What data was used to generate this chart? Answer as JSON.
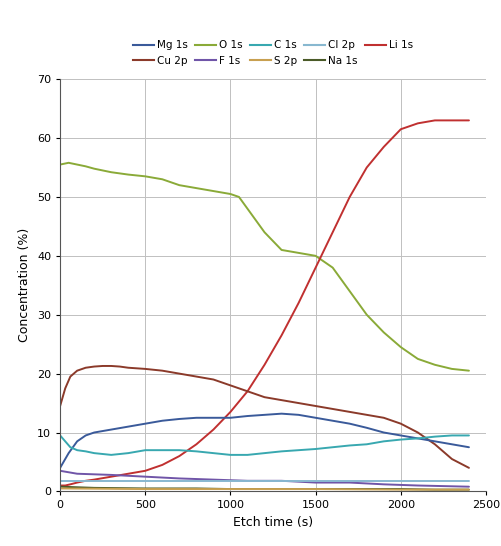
{
  "xlabel": "Etch time (s)",
  "ylabel": "Concentration (%)",
  "xlim": [
    0,
    2500
  ],
  "ylim": [
    0,
    70
  ],
  "yticks": [
    0,
    10,
    20,
    30,
    40,
    50,
    60,
    70
  ],
  "xticks": [
    0,
    500,
    1000,
    1500,
    2000,
    2500
  ],
  "legend_row1": [
    "Mg 1s",
    "Cu 2p",
    "O 1s",
    "F 1s",
    "C 1s"
  ],
  "legend_row2": [
    "S 2p",
    "Cl 2p",
    "Na 1s",
    "Li 1s"
  ],
  "legend_colors_row1": [
    "#3a5a9a",
    "#8b3a2a",
    "#8aaa38",
    "#7055a8",
    "#38a8b0"
  ],
  "legend_colors_row2": [
    "#c8a050",
    "#88b8d0",
    "#4a5a28",
    "#c03030"
  ],
  "background_color": "#ffffff",
  "grid_color": "#c0c0c0",
  "series": {
    "O_1s": {
      "color": "#8aaa38",
      "x": [
        0,
        50,
        100,
        150,
        200,
        300,
        400,
        500,
        600,
        700,
        800,
        900,
        1000,
        1050,
        1100,
        1200,
        1300,
        1400,
        1500,
        1600,
        1700,
        1800,
        1900,
        2000,
        2100,
        2200,
        2300,
        2400
      ],
      "y": [
        55.5,
        55.8,
        55.5,
        55.2,
        54.8,
        54.2,
        53.8,
        53.5,
        53.0,
        52.0,
        51.5,
        51.0,
        50.5,
        50.0,
        48.0,
        44.0,
        41.0,
        40.5,
        40.0,
        38.0,
        34.0,
        30.0,
        27.0,
        24.5,
        22.5,
        21.5,
        20.8,
        20.5
      ]
    },
    "Cu_2p": {
      "color": "#8b3a2a",
      "x": [
        0,
        30,
        60,
        100,
        150,
        200,
        250,
        300,
        350,
        400,
        500,
        600,
        700,
        800,
        900,
        1000,
        1100,
        1200,
        1300,
        1400,
        1500,
        1600,
        1700,
        1800,
        1900,
        2000,
        2100,
        2200,
        2300,
        2400
      ],
      "y": [
        14.5,
        17.5,
        19.5,
        20.5,
        21.0,
        21.2,
        21.3,
        21.3,
        21.2,
        21.0,
        20.8,
        20.5,
        20.0,
        19.5,
        19.0,
        18.0,
        17.0,
        16.0,
        15.5,
        15.0,
        14.5,
        14.0,
        13.5,
        13.0,
        12.5,
        11.5,
        10.0,
        8.0,
        5.5,
        4.0
      ]
    },
    "Mg_1s": {
      "color": "#3a5a9a",
      "x": [
        0,
        50,
        100,
        150,
        200,
        300,
        400,
        500,
        600,
        700,
        800,
        900,
        1000,
        1100,
        1200,
        1300,
        1400,
        1500,
        1600,
        1700,
        1800,
        1900,
        2000,
        2100,
        2200,
        2300,
        2400
      ],
      "y": [
        4.0,
        6.5,
        8.5,
        9.5,
        10.0,
        10.5,
        11.0,
        11.5,
        12.0,
        12.3,
        12.5,
        12.5,
        12.5,
        12.8,
        13.0,
        13.2,
        13.0,
        12.5,
        12.0,
        11.5,
        10.8,
        10.0,
        9.5,
        9.0,
        8.5,
        8.0,
        7.5
      ]
    },
    "C_1s": {
      "color": "#38a8b0",
      "x": [
        0,
        30,
        60,
        100,
        150,
        200,
        300,
        400,
        500,
        600,
        700,
        800,
        900,
        1000,
        1100,
        1200,
        1300,
        1400,
        1500,
        1600,
        1700,
        1800,
        1900,
        2000,
        2100,
        2200,
        2300,
        2400
      ],
      "y": [
        9.5,
        8.5,
        7.5,
        7.0,
        6.8,
        6.5,
        6.2,
        6.5,
        7.0,
        7.0,
        7.0,
        6.8,
        6.5,
        6.2,
        6.2,
        6.5,
        6.8,
        7.0,
        7.2,
        7.5,
        7.8,
        8.0,
        8.5,
        8.8,
        9.0,
        9.3,
        9.5,
        9.5
      ]
    },
    "F_1s": {
      "color": "#7055a8",
      "x": [
        0,
        100,
        300,
        500,
        700,
        900,
        1100,
        1300,
        1500,
        1700,
        1900,
        2100,
        2400
      ],
      "y": [
        3.5,
        3.0,
        2.8,
        2.5,
        2.2,
        2.0,
        1.8,
        1.8,
        1.5,
        1.5,
        1.2,
        1.0,
        0.8
      ]
    },
    "S_2p": {
      "color": "#c8a050",
      "x": [
        0,
        500,
        1000,
        1500,
        2000,
        2400
      ],
      "y": [
        0.5,
        0.4,
        0.4,
        0.4,
        0.3,
        0.3
      ]
    },
    "Cl_2p": {
      "color": "#88b8d0",
      "x": [
        0,
        200,
        500,
        800,
        1000,
        1200,
        1500,
        1800,
        2000,
        2200,
        2400
      ],
      "y": [
        1.8,
        1.8,
        1.8,
        1.8,
        1.8,
        1.8,
        1.8,
        1.8,
        1.8,
        1.8,
        1.8
      ]
    },
    "Na_1s": {
      "color": "#4a5a28",
      "x": [
        0,
        200,
        500,
        800,
        1000,
        1200,
        1500,
        1800,
        2000,
        2200,
        2400
      ],
      "y": [
        0.8,
        0.6,
        0.5,
        0.5,
        0.4,
        0.4,
        0.4,
        0.4,
        0.4,
        0.3,
        0.3
      ]
    },
    "Li_1s": {
      "color": "#c03030",
      "x": [
        0,
        30,
        60,
        100,
        150,
        200,
        300,
        400,
        500,
        600,
        700,
        800,
        900,
        1000,
        1100,
        1200,
        1300,
        1400,
        1500,
        1600,
        1700,
        1800,
        1900,
        2000,
        2100,
        2200,
        2300,
        2400
      ],
      "y": [
        1.0,
        1.0,
        1.2,
        1.5,
        1.8,
        2.0,
        2.5,
        3.0,
        3.5,
        4.5,
        6.0,
        8.0,
        10.5,
        13.5,
        17.0,
        21.5,
        26.5,
        32.0,
        38.0,
        44.0,
        50.0,
        55.0,
        58.5,
        61.5,
        62.5,
        63.0,
        63.0,
        63.0
      ]
    }
  }
}
